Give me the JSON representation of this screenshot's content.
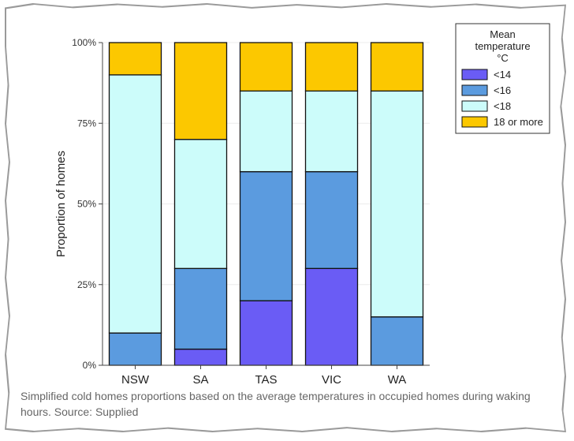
{
  "caption": "Simplified cold homes proportions based on the average temperatures in occupied homes during waking hours. Source: Supplied",
  "colors": {
    "lt14": "#6a5cf5",
    "lt16": "#5b9bdf",
    "lt18": "#ccfcfa",
    "ge18": "#fcc800"
  },
  "chart_data": {
    "type": "bar",
    "stacked": true,
    "categories": [
      "NSW",
      "SA",
      "TAS",
      "VIC",
      "WA"
    ],
    "ylabel": "Proportion of homes",
    "ylim": [
      0,
      100
    ],
    "yticks": [
      0,
      25,
      50,
      75,
      100
    ],
    "ytick_labels": [
      "0%",
      "25%",
      "50%",
      "75%",
      "100%"
    ],
    "legend": {
      "title_lines": [
        "Mean",
        "temperature",
        "°C"
      ],
      "placement": "top-right"
    },
    "series": [
      {
        "name": "<14",
        "color": "#6a5cf5",
        "values": [
          0,
          5,
          20,
          30,
          0
        ]
      },
      {
        "name": "<16",
        "color": "#5b9bdf",
        "values": [
          10,
          25,
          40,
          30,
          15
        ]
      },
      {
        "name": "<18",
        "color": "#ccfcfa",
        "values": [
          80,
          40,
          25,
          25,
          70
        ]
      },
      {
        "name": "18 or more",
        "color": "#fcc800",
        "values": [
          10,
          30,
          15,
          15,
          15
        ]
      }
    ]
  }
}
